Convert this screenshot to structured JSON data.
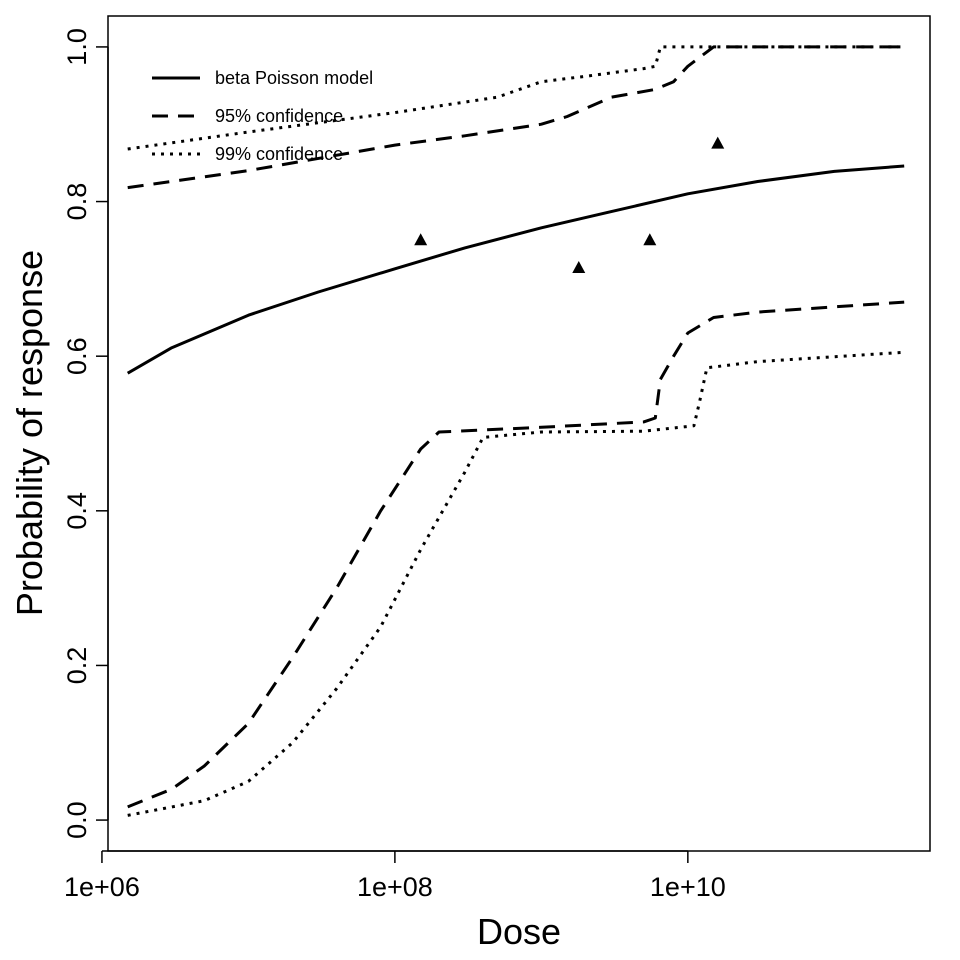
{
  "chart_data": {
    "type": "line",
    "title": "",
    "xlabel": "Dose",
    "ylabel": "Probability of response",
    "x_scale": "log10",
    "xlim": [
      1100000,
      450000000000
    ],
    "ylim": [
      -0.04,
      1.04
    ],
    "x_ticks": [
      {
        "value": 1000000,
        "label": "1e+06"
      },
      {
        "value": 100000000,
        "label": "1e+08"
      },
      {
        "value": 10000000000,
        "label": "1e+10"
      }
    ],
    "y_ticks": [
      {
        "value": 0.0,
        "label": "0.0"
      },
      {
        "value": 0.2,
        "label": "0.2"
      },
      {
        "value": 0.4,
        "label": "0.4"
      },
      {
        "value": 0.6,
        "label": "0.6"
      },
      {
        "value": 0.8,
        "label": "0.8"
      },
      {
        "value": 1.0,
        "label": "1.0"
      }
    ],
    "grid": false,
    "legend": {
      "position": "top-left",
      "entries": [
        {
          "label": "beta Poisson model",
          "style": "solid"
        },
        {
          "label": "95% confidence",
          "style": "dashed"
        },
        {
          "label": "99% confidence",
          "style": "dotted"
        }
      ]
    },
    "series": [
      {
        "name": "beta Poisson model",
        "style": "solid",
        "points": [
          [
            1500000,
            0.578
          ],
          [
            3000000,
            0.611
          ],
          [
            10000000,
            0.653
          ],
          [
            30000000,
            0.683
          ],
          [
            100000000,
            0.713
          ],
          [
            300000000,
            0.74
          ],
          [
            1000000000,
            0.766
          ],
          [
            3000000000,
            0.787
          ],
          [
            10000000000,
            0.81
          ],
          [
            30000000000,
            0.826
          ],
          [
            100000000000,
            0.839
          ],
          [
            300000000000,
            0.846
          ]
        ]
      },
      {
        "name": "95% confidence upper",
        "style": "dashed",
        "points": [
          [
            1500000,
            0.818
          ],
          [
            10000000,
            0.84
          ],
          [
            100000000,
            0.873
          ],
          [
            300000000,
            0.885
          ],
          [
            1000000000,
            0.9
          ],
          [
            1500000000,
            0.91
          ],
          [
            3000000000,
            0.935
          ],
          [
            6000000000,
            0.945
          ],
          [
            8000000000,
            0.955
          ],
          [
            10000000000,
            0.975
          ],
          [
            15000000000,
            1.0
          ],
          [
            300000000000,
            1.0
          ]
        ]
      },
      {
        "name": "95% confidence lower",
        "style": "dashed",
        "points": [
          [
            1500000,
            0.017
          ],
          [
            3000000,
            0.04
          ],
          [
            5000000,
            0.07
          ],
          [
            10000000,
            0.125
          ],
          [
            20000000,
            0.21
          ],
          [
            40000000,
            0.3
          ],
          [
            80000000,
            0.4
          ],
          [
            150000000,
            0.48
          ],
          [
            200000000,
            0.502
          ],
          [
            1000000000,
            0.508
          ],
          [
            5000000000,
            0.515
          ],
          [
            6000000000,
            0.52
          ],
          [
            6500000000,
            0.57
          ],
          [
            8000000000,
            0.6
          ],
          [
            10000000000,
            0.63
          ],
          [
            15000000000,
            0.65
          ],
          [
            30000000000,
            0.657
          ],
          [
            300000000000,
            0.67
          ]
        ]
      },
      {
        "name": "99% confidence upper",
        "style": "dotted",
        "points": [
          [
            1500000,
            0.868
          ],
          [
            10000000,
            0.89
          ],
          [
            100000000,
            0.915
          ],
          [
            500000000,
            0.935
          ],
          [
            1000000000,
            0.955
          ],
          [
            2000000000,
            0.962
          ],
          [
            5000000000,
            0.972
          ],
          [
            6000000000,
            0.975
          ],
          [
            6500000000,
            1.0
          ],
          [
            300000000000,
            1.0
          ]
        ]
      },
      {
        "name": "99% confidence lower",
        "style": "dotted",
        "points": [
          [
            1500000,
            0.006
          ],
          [
            5000000,
            0.025
          ],
          [
            10000000,
            0.05
          ],
          [
            20000000,
            0.1
          ],
          [
            40000000,
            0.17
          ],
          [
            80000000,
            0.25
          ],
          [
            150000000,
            0.35
          ],
          [
            300000000,
            0.45
          ],
          [
            400000000,
            0.495
          ],
          [
            1000000000,
            0.502
          ],
          [
            5000000000,
            0.503
          ],
          [
            11000000000,
            0.51
          ],
          [
            12000000000,
            0.54
          ],
          [
            13500000000,
            0.585
          ],
          [
            30000000000,
            0.593
          ],
          [
            300000000000,
            0.605
          ]
        ]
      }
    ],
    "observations": {
      "marker": "triangle",
      "points": [
        [
          150000000,
          0.75
        ],
        [
          1800000000,
          0.714
        ],
        [
          5500000000,
          0.75
        ],
        [
          16000000000,
          0.875
        ]
      ]
    }
  }
}
